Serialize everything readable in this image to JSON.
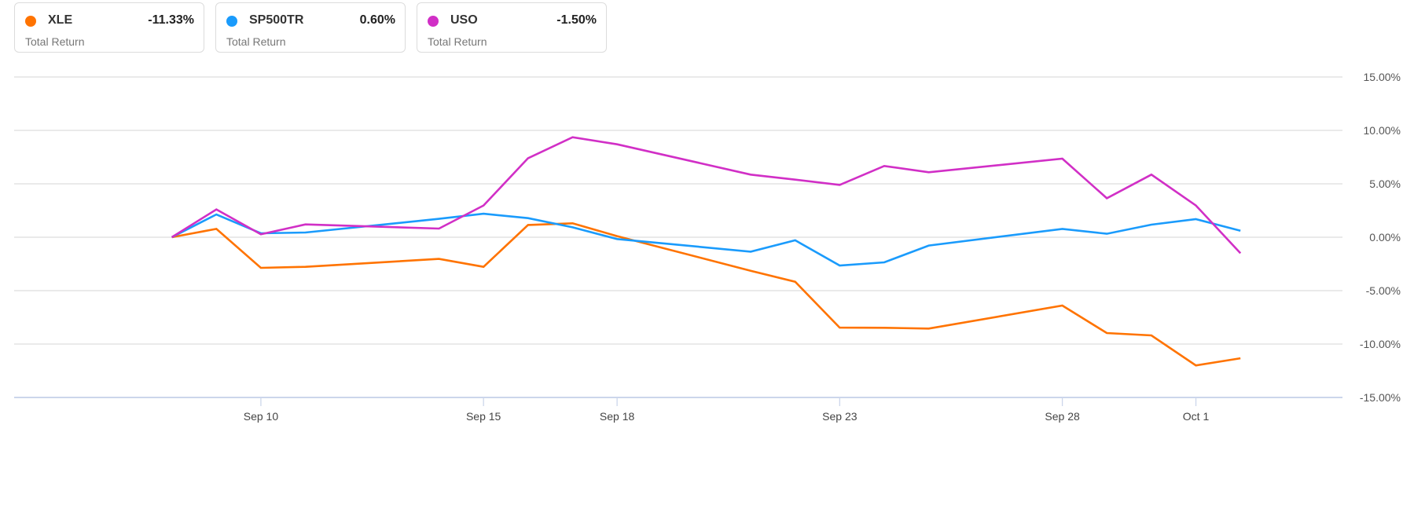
{
  "legend": [
    {
      "symbol": "XLE",
      "value": "-11.33%",
      "label": "Total Return",
      "color": "#ff7300"
    },
    {
      "symbol": "SP500TR",
      "value": "0.60%",
      "label": "Total Return",
      "color": "#1a9bfc"
    },
    {
      "symbol": "USO",
      "value": "-1.50%",
      "label": "Total Return",
      "color": "#d12fc6"
    }
  ],
  "chart_data": {
    "type": "line",
    "title": "",
    "xlabel": "",
    "ylabel": "",
    "ylim": [
      -15,
      15
    ],
    "xlim": [
      "2020-09-04T11:00",
      "2020-10-04T07:00"
    ],
    "grid": true,
    "y_ticks": [
      15,
      10,
      5,
      0,
      -5,
      -10,
      -15
    ],
    "y_tick_labels": [
      "15.00%",
      "10.00%",
      "5.00%",
      "0.00%",
      "-5.00%",
      "-10.00%",
      "-15.00%"
    ],
    "x_ticks": [
      "2020-09-10",
      "2020-09-15",
      "2020-09-18",
      "2020-09-23",
      "2020-09-28",
      "2020-10-01"
    ],
    "x_tick_labels": [
      "Sep 10",
      "Sep 15",
      "Sep 18",
      "Sep 23",
      "Sep 28",
      "Oct 1"
    ],
    "x": [
      "2020-09-08",
      "2020-09-09",
      "2020-09-10",
      "2020-09-11",
      "2020-09-14",
      "2020-09-15",
      "2020-09-16",
      "2020-09-17",
      "2020-09-18",
      "2020-09-21",
      "2020-09-22",
      "2020-09-23",
      "2020-09-24",
      "2020-09-25",
      "2020-09-28",
      "2020-09-29",
      "2020-09-30",
      "2020-10-01",
      "2020-10-02"
    ],
    "series": [
      {
        "name": "XLE",
        "color": "#ff7300",
        "values": [
          0,
          0.78,
          -2.87,
          -2.77,
          -2.03,
          -2.77,
          1.15,
          1.3,
          0.1,
          -3.14,
          -4.17,
          -8.46,
          -8.48,
          -8.55,
          -6.4,
          -8.97,
          -9.19,
          -12.0,
          -11.33
        ]
      },
      {
        "name": "SP500TR",
        "color": "#1a9bfc",
        "values": [
          0,
          2.13,
          0.37,
          0.44,
          1.72,
          2.2,
          1.79,
          0.93,
          -0.17,
          -1.35,
          -0.29,
          -2.65,
          -2.35,
          -0.78,
          0.78,
          0.32,
          1.18,
          1.69,
          0.6
        ]
      },
      {
        "name": "USO",
        "color": "#d12fc6",
        "values": [
          0,
          2.6,
          0.27,
          1.2,
          0.81,
          2.97,
          7.4,
          9.36,
          8.7,
          5.86,
          5.39,
          4.9,
          6.67,
          6.08,
          7.35,
          3.65,
          5.86,
          2.97,
          -1.5
        ]
      }
    ]
  }
}
